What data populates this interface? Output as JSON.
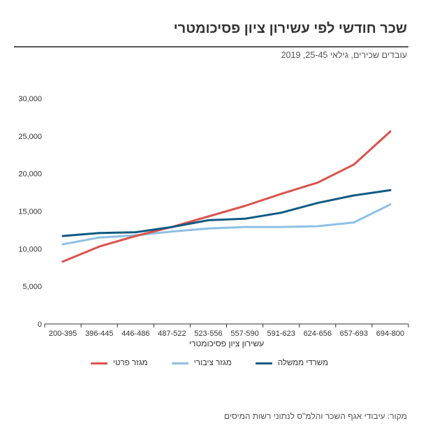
{
  "header": {
    "title": "שכר חודשי לפי עשירון ציון פסיכומטרי",
    "subtitle": "עובדים שכירים, גילאי 25-45, 2019"
  },
  "source_note": "מקור: עיבודי אגף השכר והלמ\"ס לנתוני רשות המיסים",
  "chart_data": {
    "type": "line",
    "xlabel": "עשירון ציון פסיכומטרי",
    "ylabel": "",
    "categories": [
      "200-395",
      "396-445",
      "446-486",
      "487-522",
      "523-556",
      "557-590",
      "591-623",
      "624-656",
      "657-693",
      "694-800"
    ],
    "y_tick_labels": [
      "0",
      "5,000",
      "10,000",
      "15,000",
      "20,000",
      "25,000",
      "30,000"
    ],
    "ylim": [
      0,
      30000
    ],
    "grid": false,
    "legend_position": "bottom",
    "series": [
      {
        "name": "מגזר פרטי",
        "color": "#d9534f",
        "values": [
          8300,
          10300,
          11700,
          12900,
          14300,
          15700,
          17300,
          18800,
          21200,
          25600
        ]
      },
      {
        "name": "מגזר ציבורי",
        "color": "#8ec0e4",
        "values": [
          10600,
          11500,
          11800,
          12300,
          12700,
          12900,
          12900,
          13000,
          13500,
          15900
        ]
      },
      {
        "name": "משרדי ממשלה",
        "color": "#0f5a82",
        "values": [
          11700,
          12100,
          12200,
          12900,
          13800,
          14000,
          14800,
          16100,
          17100,
          17800
        ]
      }
    ]
  }
}
